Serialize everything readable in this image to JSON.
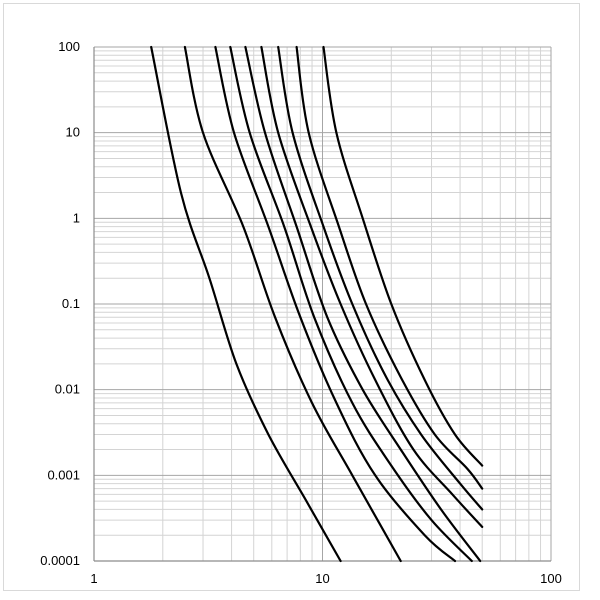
{
  "chart_data": {
    "type": "line",
    "title": "",
    "xlabel": "",
    "ylabel": "",
    "x_scale": "log",
    "y_scale": "log",
    "xlim": [
      1,
      100
    ],
    "ylim": [
      0.0001,
      100
    ],
    "grid": true,
    "legend": "none",
    "x_tick_labels": [
      "1",
      "10",
      "100"
    ],
    "y_tick_labels": [
      "100",
      "10",
      "1",
      "0.1",
      "0.01",
      "0.001",
      "0.0001"
    ],
    "x_ticks": [
      1,
      10,
      100
    ],
    "y_ticks": [
      100,
      10,
      1,
      0.1,
      0.01,
      0.001,
      0.0001
    ],
    "series": [
      {
        "points": [
          [
            1.78,
            100
          ],
          [
            2.4,
            2.0
          ],
          [
            3.2,
            0.2
          ],
          [
            4.2,
            0.02
          ],
          [
            5.8,
            0.003
          ],
          [
            8.5,
            0.0005
          ],
          [
            12.0,
            0.0001
          ]
        ]
      },
      {
        "points": [
          [
            2.5,
            100
          ],
          [
            3.0,
            10
          ],
          [
            4.5,
            0.8
          ],
          [
            6.2,
            0.07
          ],
          [
            9.0,
            0.007
          ],
          [
            13.5,
            0.001
          ],
          [
            22.0,
            0.0001
          ]
        ]
      },
      {
        "points": [
          [
            3.4,
            100
          ],
          [
            4.1,
            10
          ],
          [
            5.8,
            0.8
          ],
          [
            8.0,
            0.07
          ],
          [
            11.5,
            0.007
          ],
          [
            17.0,
            0.001
          ],
          [
            28.0,
            0.0002
          ],
          [
            38.0,
            0.0001
          ]
        ]
      },
      {
        "points": [
          [
            3.95,
            100
          ],
          [
            4.8,
            10
          ],
          [
            6.8,
            0.8
          ],
          [
            9.2,
            0.07
          ],
          [
            13.5,
            0.007
          ],
          [
            20.0,
            0.0013
          ],
          [
            30.0,
            0.0003
          ],
          [
            45.0,
            0.0001
          ]
        ]
      },
      {
        "points": [
          [
            4.6,
            100
          ],
          [
            5.6,
            10
          ],
          [
            7.7,
            0.8
          ],
          [
            10.5,
            0.07
          ],
          [
            15.0,
            0.01
          ],
          [
            22.0,
            0.002
          ],
          [
            33.0,
            0.0004
          ],
          [
            49.0,
            0.0001
          ]
        ]
      },
      {
        "points": [
          [
            5.4,
            100
          ],
          [
            6.4,
            10
          ],
          [
            8.9,
            0.8
          ],
          [
            12.0,
            0.1
          ],
          [
            17.0,
            0.013
          ],
          [
            25.0,
            0.002
          ],
          [
            37.0,
            0.0006
          ],
          [
            50.0,
            0.00025
          ]
        ]
      },
      {
        "points": [
          [
            6.4,
            100
          ],
          [
            7.4,
            10
          ],
          [
            10.1,
            0.8
          ],
          [
            13.5,
            0.1
          ],
          [
            19.0,
            0.014
          ],
          [
            27.0,
            0.003
          ],
          [
            40.0,
            0.0008
          ],
          [
            50.0,
            0.0004
          ]
        ]
      },
      {
        "points": [
          [
            7.7,
            100
          ],
          [
            8.7,
            10
          ],
          [
            11.8,
            0.8
          ],
          [
            15.5,
            0.1
          ],
          [
            22.0,
            0.014
          ],
          [
            31.0,
            0.003
          ],
          [
            43.0,
            0.0012
          ],
          [
            50.0,
            0.0007
          ]
        ]
      },
      {
        "points": [
          [
            10.1,
            100
          ],
          [
            11.5,
            10
          ],
          [
            15.0,
            1.0
          ],
          [
            20.0,
            0.1
          ],
          [
            28.0,
            0.013
          ],
          [
            38.0,
            0.003
          ],
          [
            50.0,
            0.0013
          ]
        ]
      }
    ]
  },
  "colors": {
    "background": "#ffffff",
    "grid_major": "#a6a6a6",
    "grid_minor": "#d4d4d4",
    "axis": "#8c8c8c",
    "line": "#000000"
  }
}
